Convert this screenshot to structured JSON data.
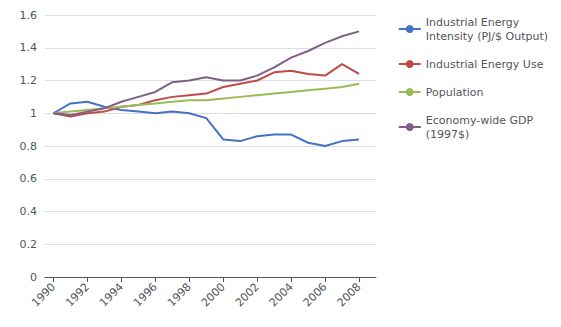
{
  "chart_data": {
    "type": "line",
    "x": [
      1990,
      1991,
      1992,
      1993,
      1994,
      1995,
      1996,
      1997,
      1998,
      1999,
      2000,
      2001,
      2002,
      2003,
      2004,
      2005,
      2006,
      2007,
      2008
    ],
    "series": [
      {
        "name": "Industrial Energy\nIntensity (PJ/$ Output)",
        "color": "#4472C4",
        "values": [
          1.0,
          1.06,
          1.07,
          1.04,
          1.02,
          1.01,
          1.0,
          1.01,
          1.0,
          0.97,
          0.84,
          0.83,
          0.86,
          0.87,
          0.87,
          0.82,
          0.8,
          0.83,
          0.84
        ]
      },
      {
        "name": "Industrial Energy Use",
        "color": "#BE4B48",
        "values": [
          1.0,
          0.98,
          1.0,
          1.01,
          1.04,
          1.05,
          1.08,
          1.1,
          1.11,
          1.12,
          1.16,
          1.18,
          1.2,
          1.25,
          1.26,
          1.24,
          1.23,
          1.3,
          1.24
        ]
      },
      {
        "name": "Population",
        "color": "#9BBB59",
        "values": [
          1.0,
          1.01,
          1.02,
          1.03,
          1.04,
          1.05,
          1.06,
          1.07,
          1.08,
          1.08,
          1.09,
          1.1,
          1.11,
          1.12,
          1.13,
          1.14,
          1.15,
          1.16,
          1.18
        ]
      },
      {
        "name": "Economy-wide GDP\n(1997$)",
        "color": "#7F6084",
        "values": [
          1.0,
          0.99,
          1.01,
          1.03,
          1.07,
          1.1,
          1.13,
          1.19,
          1.2,
          1.22,
          1.2,
          1.2,
          1.23,
          1.28,
          1.34,
          1.38,
          1.43,
          1.47,
          1.5
        ]
      }
    ],
    "xlim": [
      1989.5,
      2009
    ],
    "xticks": [
      1990,
      1992,
      1994,
      1996,
      1998,
      2000,
      2002,
      2004,
      2006,
      2008
    ],
    "ylim": [
      0,
      1.6
    ],
    "yticks": [
      0,
      0.2,
      0.4,
      0.6,
      0.8,
      1,
      1.2,
      1.4,
      1.6
    ],
    "grid": true,
    "legend": "right"
  }
}
